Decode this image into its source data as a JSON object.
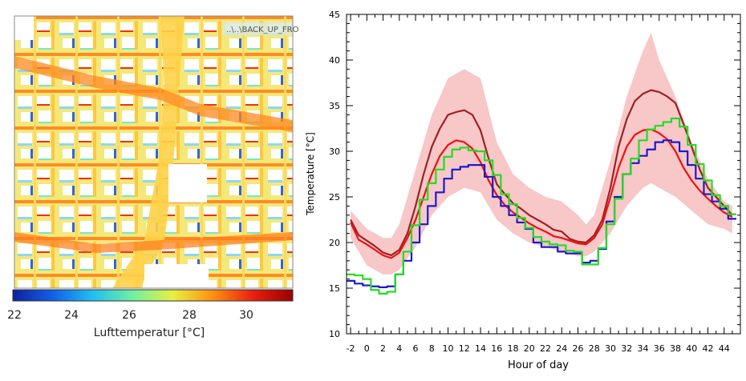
{
  "map": {
    "filename": "..\\..\\BACK_UP_FRO",
    "colorbar_label": "Lufttemperatur  [°C]",
    "colorbar_ticks": [
      "22",
      "24",
      "26",
      "28",
      "30"
    ],
    "colorbar_range": [
      22,
      31.5
    ],
    "colormap": [
      "#1020a0",
      "#1060e8",
      "#20c0f0",
      "#70f0a0",
      "#e8f040",
      "#ff9010",
      "#e82010",
      "#9a0000"
    ]
  },
  "chart_data": {
    "type": "line",
    "xlabel": "Hour of day",
    "ylabel": "Temperature [°C]",
    "xlim": [
      -2.5,
      46
    ],
    "ylim": [
      10,
      45
    ],
    "xticks": [
      -2,
      0,
      2,
      4,
      6,
      8,
      10,
      12,
      14,
      16,
      18,
      20,
      22,
      24,
      26,
      28,
      30,
      32,
      34,
      36,
      38,
      40,
      42,
      44
    ],
    "yticks": [
      10,
      15,
      20,
      25,
      30,
      35,
      40,
      45
    ],
    "band": {
      "name": "spread",
      "color": "#f6b4b4",
      "x": [
        -2,
        0,
        2,
        3,
        4,
        6,
        8,
        10,
        12,
        14,
        16,
        18,
        20,
        22,
        24,
        26,
        27,
        28,
        30,
        32,
        34,
        35,
        36,
        38,
        40,
        42,
        44,
        45
      ],
      "upper": [
        23.5,
        21.5,
        20.5,
        20.5,
        22,
        28,
        34,
        38,
        39,
        38,
        31,
        27.5,
        26,
        25,
        24.5,
        23,
        22,
        23,
        29,
        36,
        41,
        43,
        40,
        36,
        31,
        27,
        24.5,
        24
      ],
      "lower": [
        20.5,
        17.5,
        16.5,
        16.5,
        17,
        19.5,
        23,
        25,
        26,
        25.5,
        22.5,
        21,
        20,
        19.5,
        19,
        18.5,
        18.5,
        19,
        21,
        24,
        26,
        26.5,
        26,
        25,
        23.5,
        22,
        21.5,
        21
      ]
    },
    "series": [
      {
        "name": "dark-red",
        "color": "#9b2226",
        "x": [
          -2,
          -1,
          0,
          1,
          2,
          3,
          4,
          5,
          6,
          7,
          8,
          9,
          10,
          11,
          12,
          13,
          14,
          15,
          16,
          17,
          18,
          19,
          20,
          21,
          22,
          23,
          24,
          25,
          26,
          27,
          28,
          29,
          30,
          31,
          32,
          33,
          34,
          35,
          36,
          37,
          38,
          39,
          40,
          41,
          42,
          43,
          44,
          45
        ],
        "values": [
          22.5,
          20.8,
          20.2,
          19.6,
          18.9,
          18.6,
          19.2,
          21,
          24,
          27.5,
          30.5,
          32.5,
          34,
          34.3,
          34.5,
          34,
          32.3,
          29.2,
          26.4,
          25.3,
          24.3,
          23.7,
          23,
          22.5,
          22,
          21.4,
          21.2,
          20.4,
          20.1,
          20,
          20.8,
          22.5,
          26,
          30.5,
          33.5,
          35.5,
          36.3,
          36.7,
          36.5,
          36,
          35.3,
          33,
          30.5,
          28,
          26,
          25,
          24,
          23
        ]
      },
      {
        "name": "red",
        "color": "#ee1111",
        "x": [
          -2,
          -1,
          0,
          1,
          2,
          3,
          4,
          5,
          6,
          7,
          8,
          9,
          10,
          11,
          12,
          13,
          14,
          15,
          16,
          17,
          18,
          19,
          20,
          21,
          22,
          23,
          24,
          25,
          26,
          27,
          28,
          29,
          30,
          31,
          32,
          33,
          34,
          35,
          36,
          37,
          38,
          39,
          40,
          41,
          42,
          43,
          44,
          45
        ],
        "values": [
          22.2,
          20.3,
          19.8,
          19.2,
          18.6,
          18.3,
          18.9,
          20.5,
          22.5,
          25,
          27.5,
          29.5,
          30.7,
          31.2,
          31,
          30.3,
          28.8,
          26.8,
          25.2,
          24.1,
          23.3,
          22.7,
          22.1,
          21.6,
          21.2,
          20.7,
          20.5,
          20.2,
          19.9,
          19.8,
          20.5,
          22,
          25,
          28.2,
          30.5,
          31.8,
          32.3,
          32.4,
          32,
          31.3,
          30,
          28.2,
          26.8,
          25.7,
          24.8,
          24,
          23.3,
          22.8
        ]
      },
      {
        "name": "blue",
        "color": "#1a1acc",
        "step": true,
        "x": [
          -2.5,
          -1.5,
          -0.5,
          0.5,
          1.5,
          2.5,
          3.5,
          4.5,
          5.5,
          6.5,
          7.5,
          8.5,
          9.5,
          10.5,
          11.5,
          12.5,
          13.5,
          14.5,
          15.5,
          16.5,
          17.5,
          18.5,
          19.5,
          20.5,
          21.5,
          22.5,
          23.5,
          24.5,
          25.5,
          26.5,
          27.5,
          28.5,
          29.5,
          30.5,
          31.5,
          32.5,
          33.5,
          34.5,
          35.5,
          36.5,
          37.5,
          38.5,
          39.5,
          40.5,
          41.5,
          42.5,
          43.5,
          44.5
        ],
        "values": [
          15.8,
          15.5,
          15.3,
          15.2,
          15.1,
          15.2,
          16.5,
          18,
          20,
          22,
          24,
          25.5,
          27,
          28,
          28.3,
          28.5,
          28.5,
          27.2,
          25,
          24,
          23,
          22.2,
          21.5,
          20,
          19.5,
          19.5,
          19,
          18.8,
          18.8,
          17.8,
          18,
          19.3,
          22.3,
          25,
          27.5,
          28.7,
          29.5,
          30.2,
          31,
          31.2,
          31,
          30,
          28.5,
          27,
          25.3,
          24.5,
          23.7,
          22.6
        ]
      },
      {
        "name": "green",
        "color": "#22dd22",
        "step": true,
        "x": [
          -2.5,
          -1.5,
          -0.5,
          0.5,
          1.5,
          2.5,
          3.5,
          4.5,
          5.5,
          6.5,
          7.5,
          8.5,
          9.5,
          10.5,
          11.5,
          12.5,
          13.5,
          14.5,
          15.5,
          16.5,
          17.5,
          18.5,
          19.5,
          20.5,
          21.5,
          22.5,
          23.5,
          24.5,
          25.5,
          26.5,
          27.5,
          28.5,
          29.5,
          30.5,
          31.5,
          32.5,
          33.5,
          34.5,
          35.5,
          36.5,
          37.5,
          38.5,
          39.5,
          40.5,
          41.5,
          42.5,
          43.5,
          44.5
        ],
        "values": [
          16.5,
          16.4,
          16,
          14.8,
          14.4,
          14.6,
          16.5,
          19,
          21.9,
          24.7,
          26.5,
          28,
          29.4,
          30.2,
          30.4,
          30.1,
          30,
          29,
          27.4,
          25.3,
          24.2,
          22.7,
          21.6,
          20.6,
          20.1,
          19.8,
          19.7,
          19.1,
          19,
          17.6,
          17.6,
          19.4,
          22,
          24.8,
          27.5,
          29.2,
          31.2,
          32.4,
          32.8,
          33.2,
          33.6,
          32.7,
          30.7,
          28.6,
          26.8,
          25.2,
          24,
          23.1
        ]
      }
    ]
  }
}
